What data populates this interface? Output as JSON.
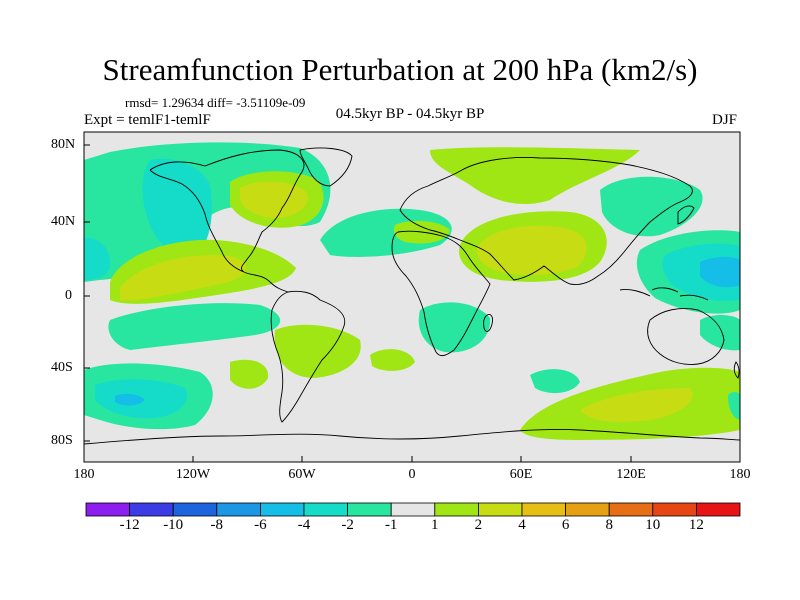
{
  "title": "Streamfunction Perturbation at 200 hPa (km2/s)",
  "stats": "rmsd= 1.29634 diff= -3.51109e-09",
  "experiment": "Expt = temlF1-temlF",
  "period": "04.5kyr BP - 04.5kyr BP",
  "season": "DJF",
  "lat_labels": [
    "80N",
    "40N",
    "0",
    "40S",
    "80S"
  ],
  "lon_labels": [
    "180",
    "120W",
    "60W",
    "0",
    "60E",
    "120E",
    "180"
  ],
  "colorbar": {
    "labels": [
      "-12",
      "-10",
      "-8",
      "-6",
      "-4",
      "-2",
      "-1",
      "1",
      "2",
      "4",
      "6",
      "8",
      "10",
      "12"
    ],
    "colors": [
      "#8c1ef0",
      "#3c3ce6",
      "#1e64dc",
      "#1e96e6",
      "#14bee6",
      "#14dcc8",
      "#28e6a0",
      "#e6e6e6",
      "#a0e614",
      "#c8dc14",
      "#e6be14",
      "#e6a014",
      "#e66e14",
      "#e64614",
      "#e61414"
    ]
  }
}
